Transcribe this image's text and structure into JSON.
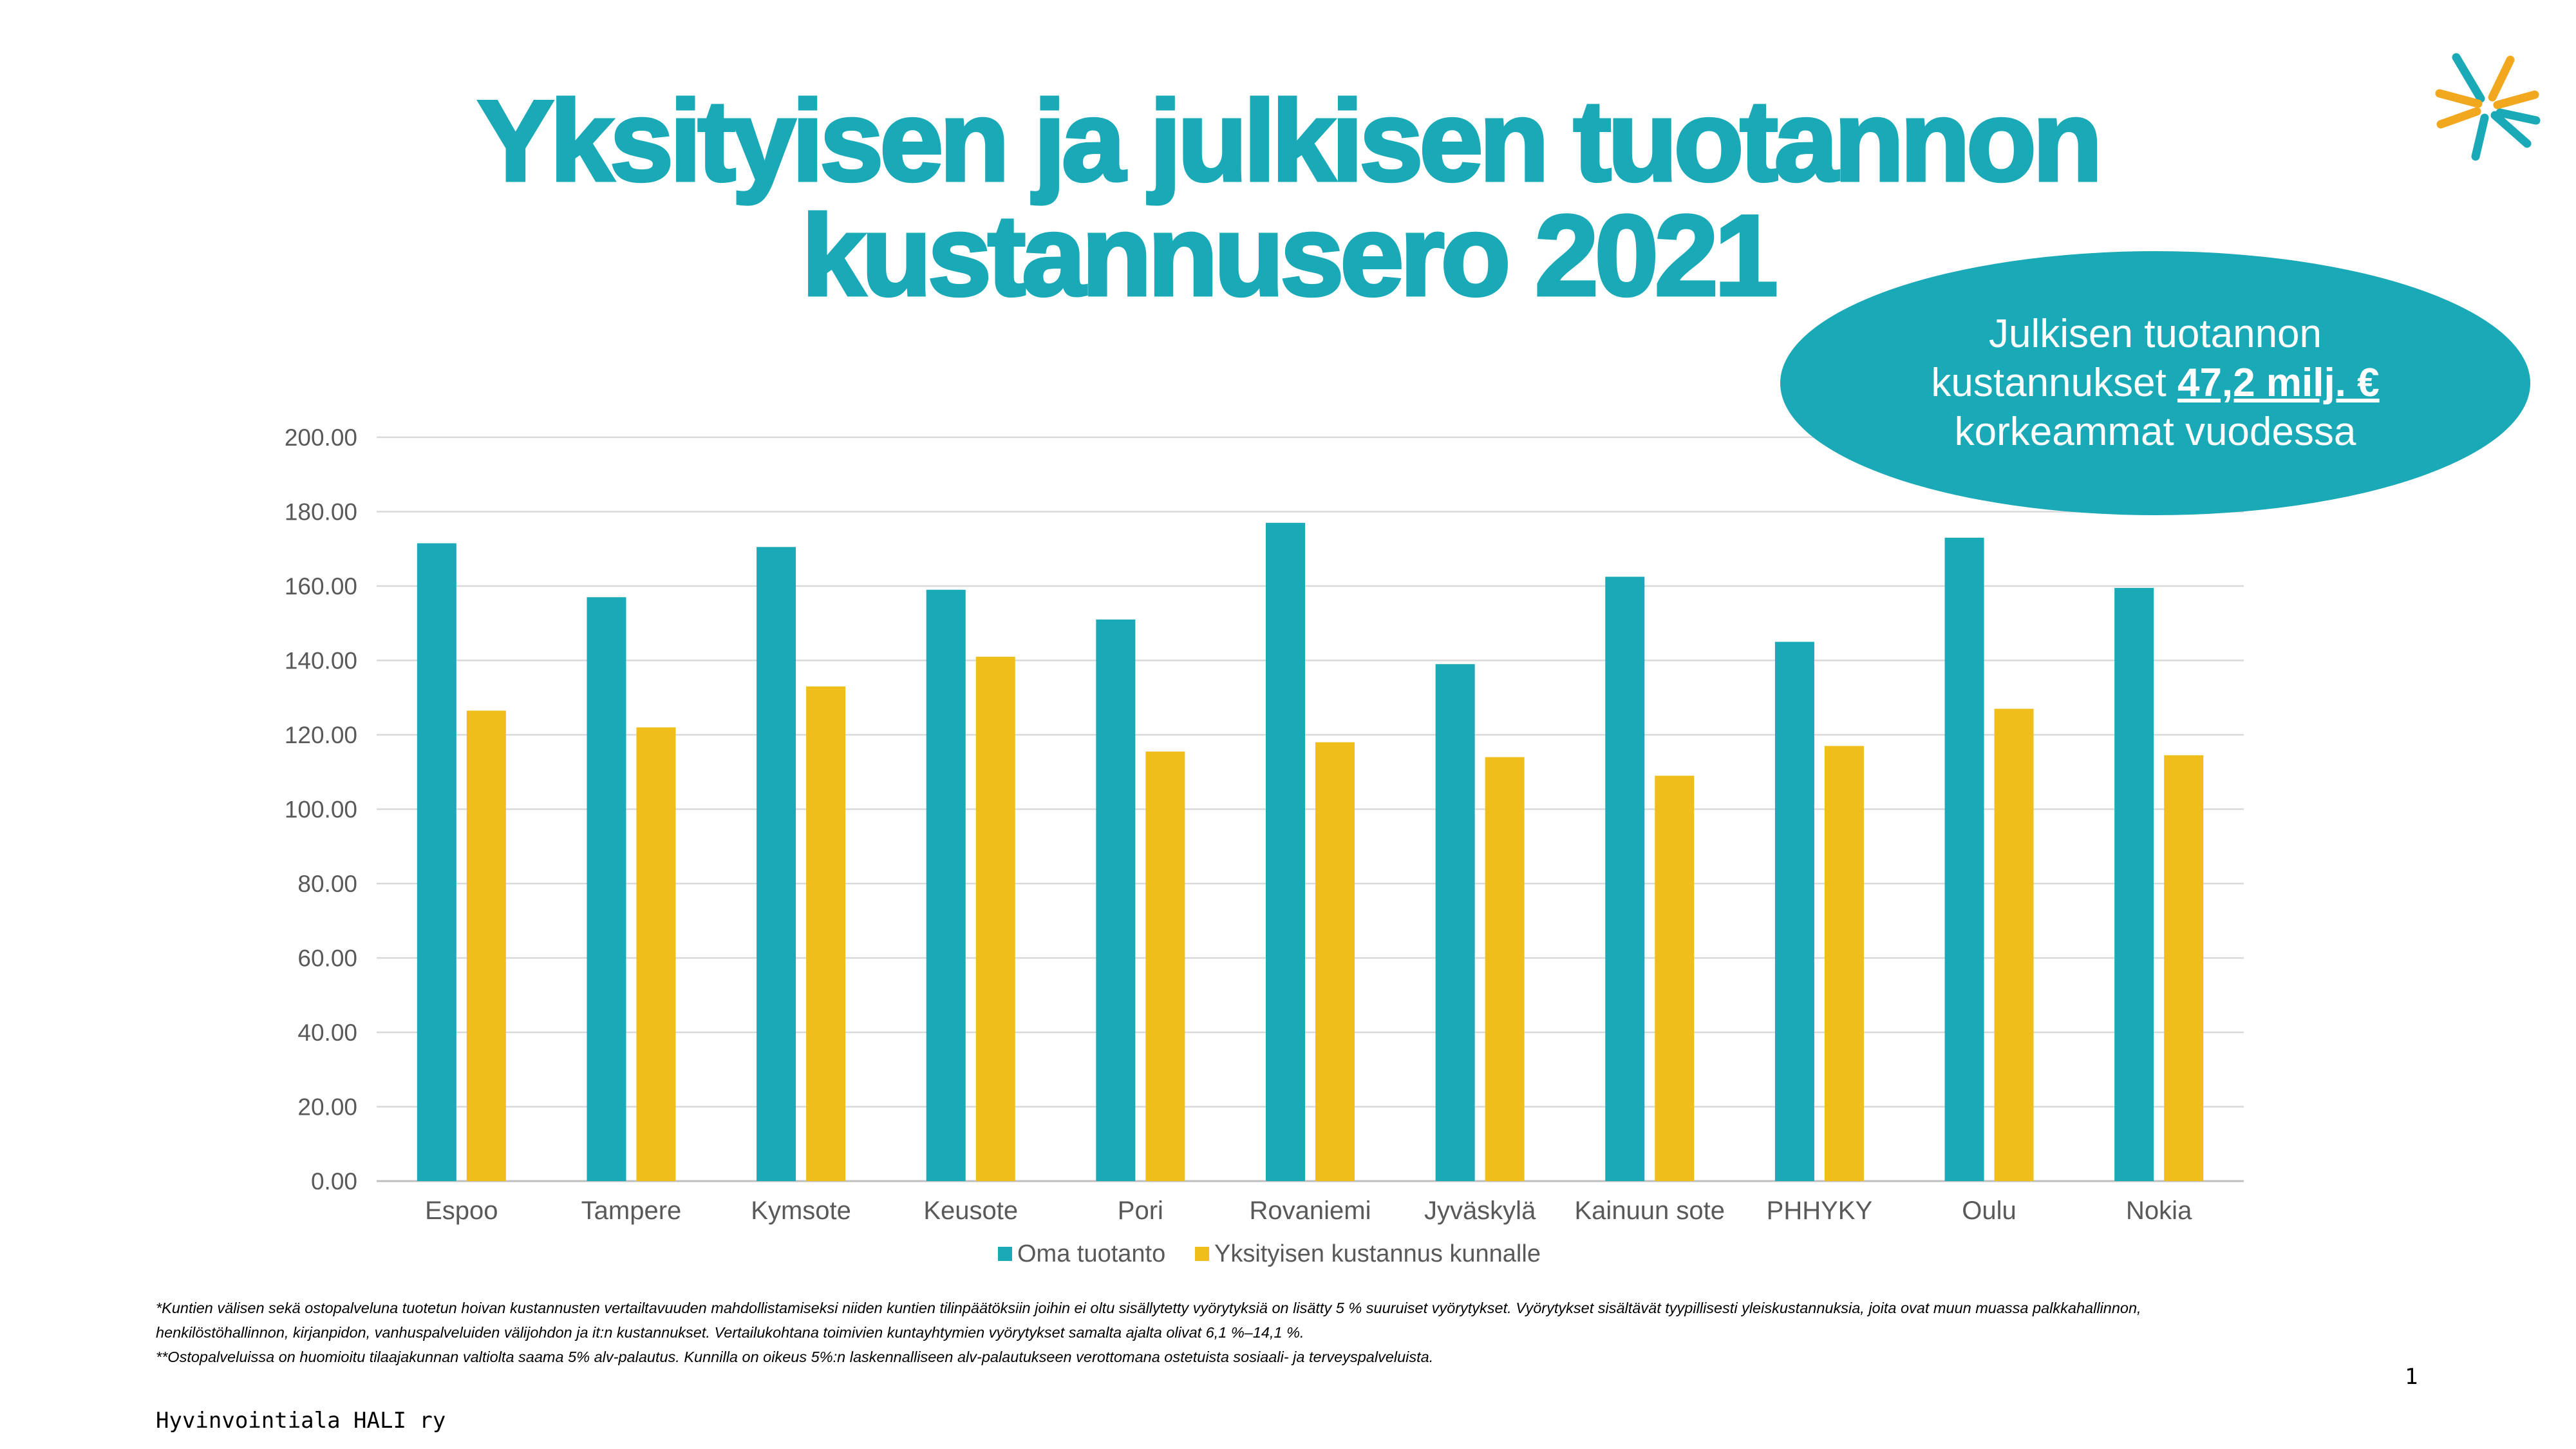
{
  "title": {
    "line1": "Yksityisen ja julkisen tuotannon",
    "line2": "kustannusero 2021"
  },
  "callout": {
    "line1": "Julkisen tuotannon",
    "line2_prefix": "kustannukset ",
    "amount": "47,2 milj. €",
    "line3": "korkeammat vuodessa"
  },
  "chart_data": {
    "type": "bar",
    "categories": [
      "Espoo",
      "Tampere",
      "Kymsote",
      "Keusote",
      "Pori",
      "Rovaniemi",
      "Jyväskylä",
      "Kainuun sote",
      "PHHYKY",
      "Oulu",
      "Nokia"
    ],
    "series": [
      {
        "name": "Oma tuotanto",
        "color": "#1aa9b7",
        "values": [
          171.5,
          157.0,
          170.5,
          159.0,
          151.0,
          177.0,
          139.0,
          162.5,
          145.0,
          173.0,
          159.5
        ]
      },
      {
        "name": "Yksityisen kustannus kunnalle",
        "color": "#f0be1a",
        "values": [
          126.5,
          122.0,
          133.0,
          141.0,
          115.5,
          118.0,
          114.0,
          109.0,
          117.0,
          127.0,
          114.5
        ]
      }
    ],
    "ylim": [
      0,
      200
    ],
    "yticks": [
      "0.00",
      "20.00",
      "40.00",
      "60.00",
      "80.00",
      "100.00",
      "120.00",
      "140.00",
      "160.00",
      "180.00",
      "200.00"
    ],
    "grid": true,
    "legend": "bottom"
  },
  "footnotes": {
    "line1": "*Kuntien välisen sekä ostopalveluna tuotetun hoivan kustannusten vertailtavuuden mahdollistamiseksi niiden kuntien tilinpäätöksiin joihin ei oltu sisällytetty vyörytyksiä on lisätty 5 % suuruiset vyörytykset. Vyörytykset sisältävät tyypillisesti yleiskustannuksia, joita ovat muun muassa palkkahallinnon,",
    "line2": "henkilöstöhallinnon, kirjanpidon, vanhuspalveluiden välijohdon ja it:n kustannukset. Vertailukohtana toimivien kuntayhtymien vyörytykset samalta ajalta olivat 6,1 %–14,1 %.",
    "line3": "**Ostopalveluissa on huomioitu tilaajakunnan valtiolta saama 5% alv-palautus. Kunnilla on oikeus 5%:n laskennalliseen alv-palautukseen verottomana ostetuista sosiaali- ja terveyspalveluista."
  },
  "page_number": "1",
  "footer_org": "Hyvinvointiala HALI ry",
  "logo": {
    "icon": "hali-burst-logo-icon",
    "colors": [
      "#1aa9b7",
      "#f2a81e"
    ]
  }
}
